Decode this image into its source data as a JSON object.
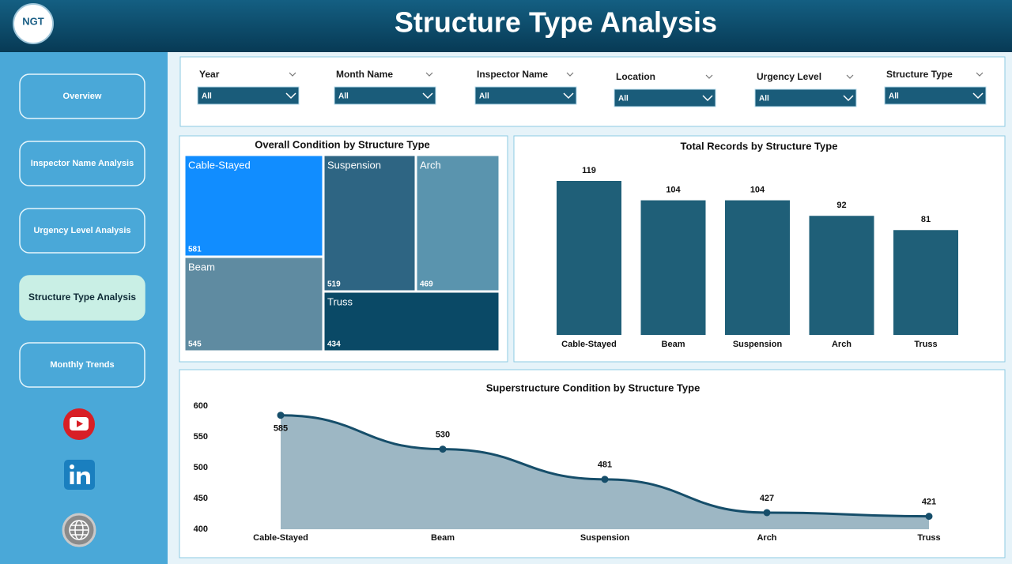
{
  "header": {
    "title": "Structure Type Analysis",
    "logo": "NGT"
  },
  "nav": [
    "Overview",
    "Inspector Name Analysis",
    "Urgency Level Analysis",
    "Structure Type Analysis",
    "Monthly Trends"
  ],
  "filters": [
    {
      "label": "Year",
      "value": "All"
    },
    {
      "label": "Month Name",
      "value": "All"
    },
    {
      "label": "Inspector Name",
      "value": "All"
    },
    {
      "label": "Location",
      "value": "All"
    },
    {
      "label": "Urgency Level",
      "value": "All"
    },
    {
      "label": "Structure Type",
      "value": "All"
    }
  ],
  "chart_data": [
    {
      "type": "treemap",
      "title": "Overall Condition by Structure Type",
      "categories": [
        "Cable-Stayed",
        "Beam",
        "Suspension",
        "Arch",
        "Truss"
      ],
      "values": [
        581,
        545,
        519,
        469,
        434
      ],
      "colors": [
        "#118dff",
        "#5f8ba1",
        "#2e6583",
        "#5a94ae",
        "#0a4966"
      ]
    },
    {
      "type": "bar",
      "title": "Total Records by Structure Type",
      "categories": [
        "Cable-Stayed",
        "Beam",
        "Suspension",
        "Arch",
        "Truss"
      ],
      "values": [
        119,
        104,
        104,
        92,
        81
      ],
      "color": "#1f5f78"
    },
    {
      "type": "area",
      "title": "Superstructure Condition by Structure Type",
      "categories": [
        "Cable-Stayed",
        "Beam",
        "Suspension",
        "Arch",
        "Truss"
      ],
      "values": [
        585,
        530,
        481,
        427,
        421
      ],
      "color": "#164e6a",
      "fill": "#9db7c4",
      "ylim": [
        400,
        600
      ],
      "yticks": [
        400,
        450,
        500,
        550,
        600
      ]
    }
  ]
}
